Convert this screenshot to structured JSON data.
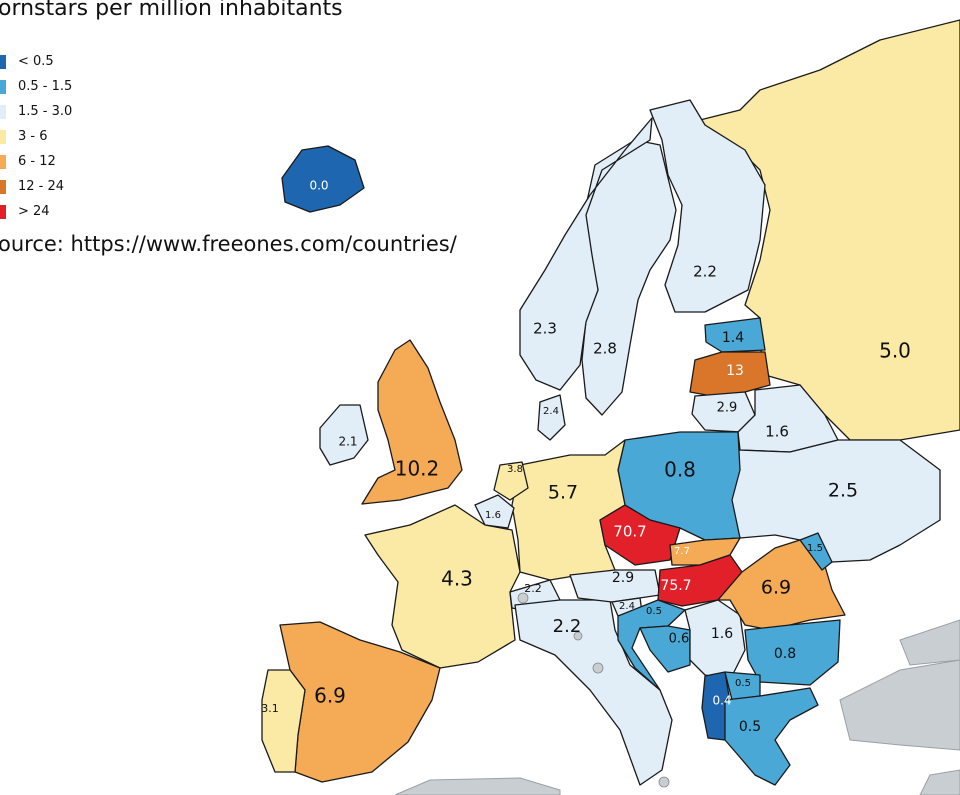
{
  "title": "ornstars per million inhabitants",
  "source": "ource: https://www.freeones.com/countries/",
  "legend": [
    {
      "label": "< 0.5",
      "color": "#1f66b0"
    },
    {
      "label": "0.5 - 1.5",
      "color": "#4aa8d6"
    },
    {
      "label": "1.5 - 3.0",
      "color": "#e1eef7"
    },
    {
      "label": "3 - 6",
      "color": "#faeaa6"
    },
    {
      "label": "6 - 12",
      "color": "#f5aa55"
    },
    {
      "label": "12 - 24",
      "color": "#d9762a"
    },
    {
      "label": "> 24",
      "color": "#e2202a"
    }
  ],
  "countries": [
    {
      "id": "russia",
      "value": "5.0",
      "color": "#faeaa6"
    },
    {
      "id": "finland",
      "value": "2.2",
      "color": "#e1eef7"
    },
    {
      "id": "sweden",
      "value": "2.8",
      "color": "#e1eef7"
    },
    {
      "id": "norway",
      "value": "2.3",
      "color": "#e1eef7"
    },
    {
      "id": "estonia",
      "value": "1.4",
      "color": "#4aa8d6"
    },
    {
      "id": "latvia",
      "value": "13",
      "color": "#d9762a"
    },
    {
      "id": "lithuania",
      "value": "2.9",
      "color": "#e1eef7"
    },
    {
      "id": "belarus",
      "value": "1.6",
      "color": "#e1eef7"
    },
    {
      "id": "ukraine",
      "value": "2.5",
      "color": "#e1eef7"
    },
    {
      "id": "poland",
      "value": "0.8",
      "color": "#4aa8d6"
    },
    {
      "id": "germany",
      "value": "5.7",
      "color": "#faeaa6"
    },
    {
      "id": "denmark",
      "value": "2.4",
      "color": "#e1eef7"
    },
    {
      "id": "netherlands",
      "value": "3.8",
      "color": "#faeaa6"
    },
    {
      "id": "belgium",
      "value": "1.6",
      "color": "#e1eef7"
    },
    {
      "id": "uk",
      "value": "10.2",
      "color": "#f5aa55"
    },
    {
      "id": "ireland",
      "value": "2.1",
      "color": "#e1eef7"
    },
    {
      "id": "iceland",
      "value": "0.0",
      "color": "#1f66b0"
    },
    {
      "id": "france",
      "value": "4.3",
      "color": "#faeaa6"
    },
    {
      "id": "spain",
      "value": "6.9",
      "color": "#f5aa55"
    },
    {
      "id": "portugal",
      "value": "3.1",
      "color": "#faeaa6"
    },
    {
      "id": "switzerland",
      "value": "2.2",
      "color": "#e1eef7"
    },
    {
      "id": "italy",
      "value": "2.2",
      "color": "#e1eef7"
    },
    {
      "id": "austria",
      "value": "2.9",
      "color": "#e1eef7"
    },
    {
      "id": "czechia",
      "value": "70.7",
      "color": "#e2202a"
    },
    {
      "id": "slovakia",
      "value": "7.7",
      "color": "#f5aa55"
    },
    {
      "id": "hungary",
      "value": "75.7",
      "color": "#e2202a"
    },
    {
      "id": "slovenia",
      "value": "2.4",
      "color": "#e1eef7"
    },
    {
      "id": "croatia",
      "value": "0.5",
      "color": "#4aa8d6"
    },
    {
      "id": "bosnia",
      "value": "0.6",
      "color": "#4aa8d6"
    },
    {
      "id": "serbia",
      "value": "1.6",
      "color": "#e1eef7"
    },
    {
      "id": "romania",
      "value": "6.9",
      "color": "#f5aa55"
    },
    {
      "id": "moldova",
      "value": "1.5",
      "color": "#4aa8d6"
    },
    {
      "id": "bulgaria",
      "value": "0.8",
      "color": "#4aa8d6"
    },
    {
      "id": "north-macedonia",
      "value": "0.5",
      "color": "#4aa8d6"
    },
    {
      "id": "albania",
      "value": "0.4",
      "color": "#1f66b0"
    },
    {
      "id": "greece",
      "value": "0.5",
      "color": "#4aa8d6"
    }
  ]
}
